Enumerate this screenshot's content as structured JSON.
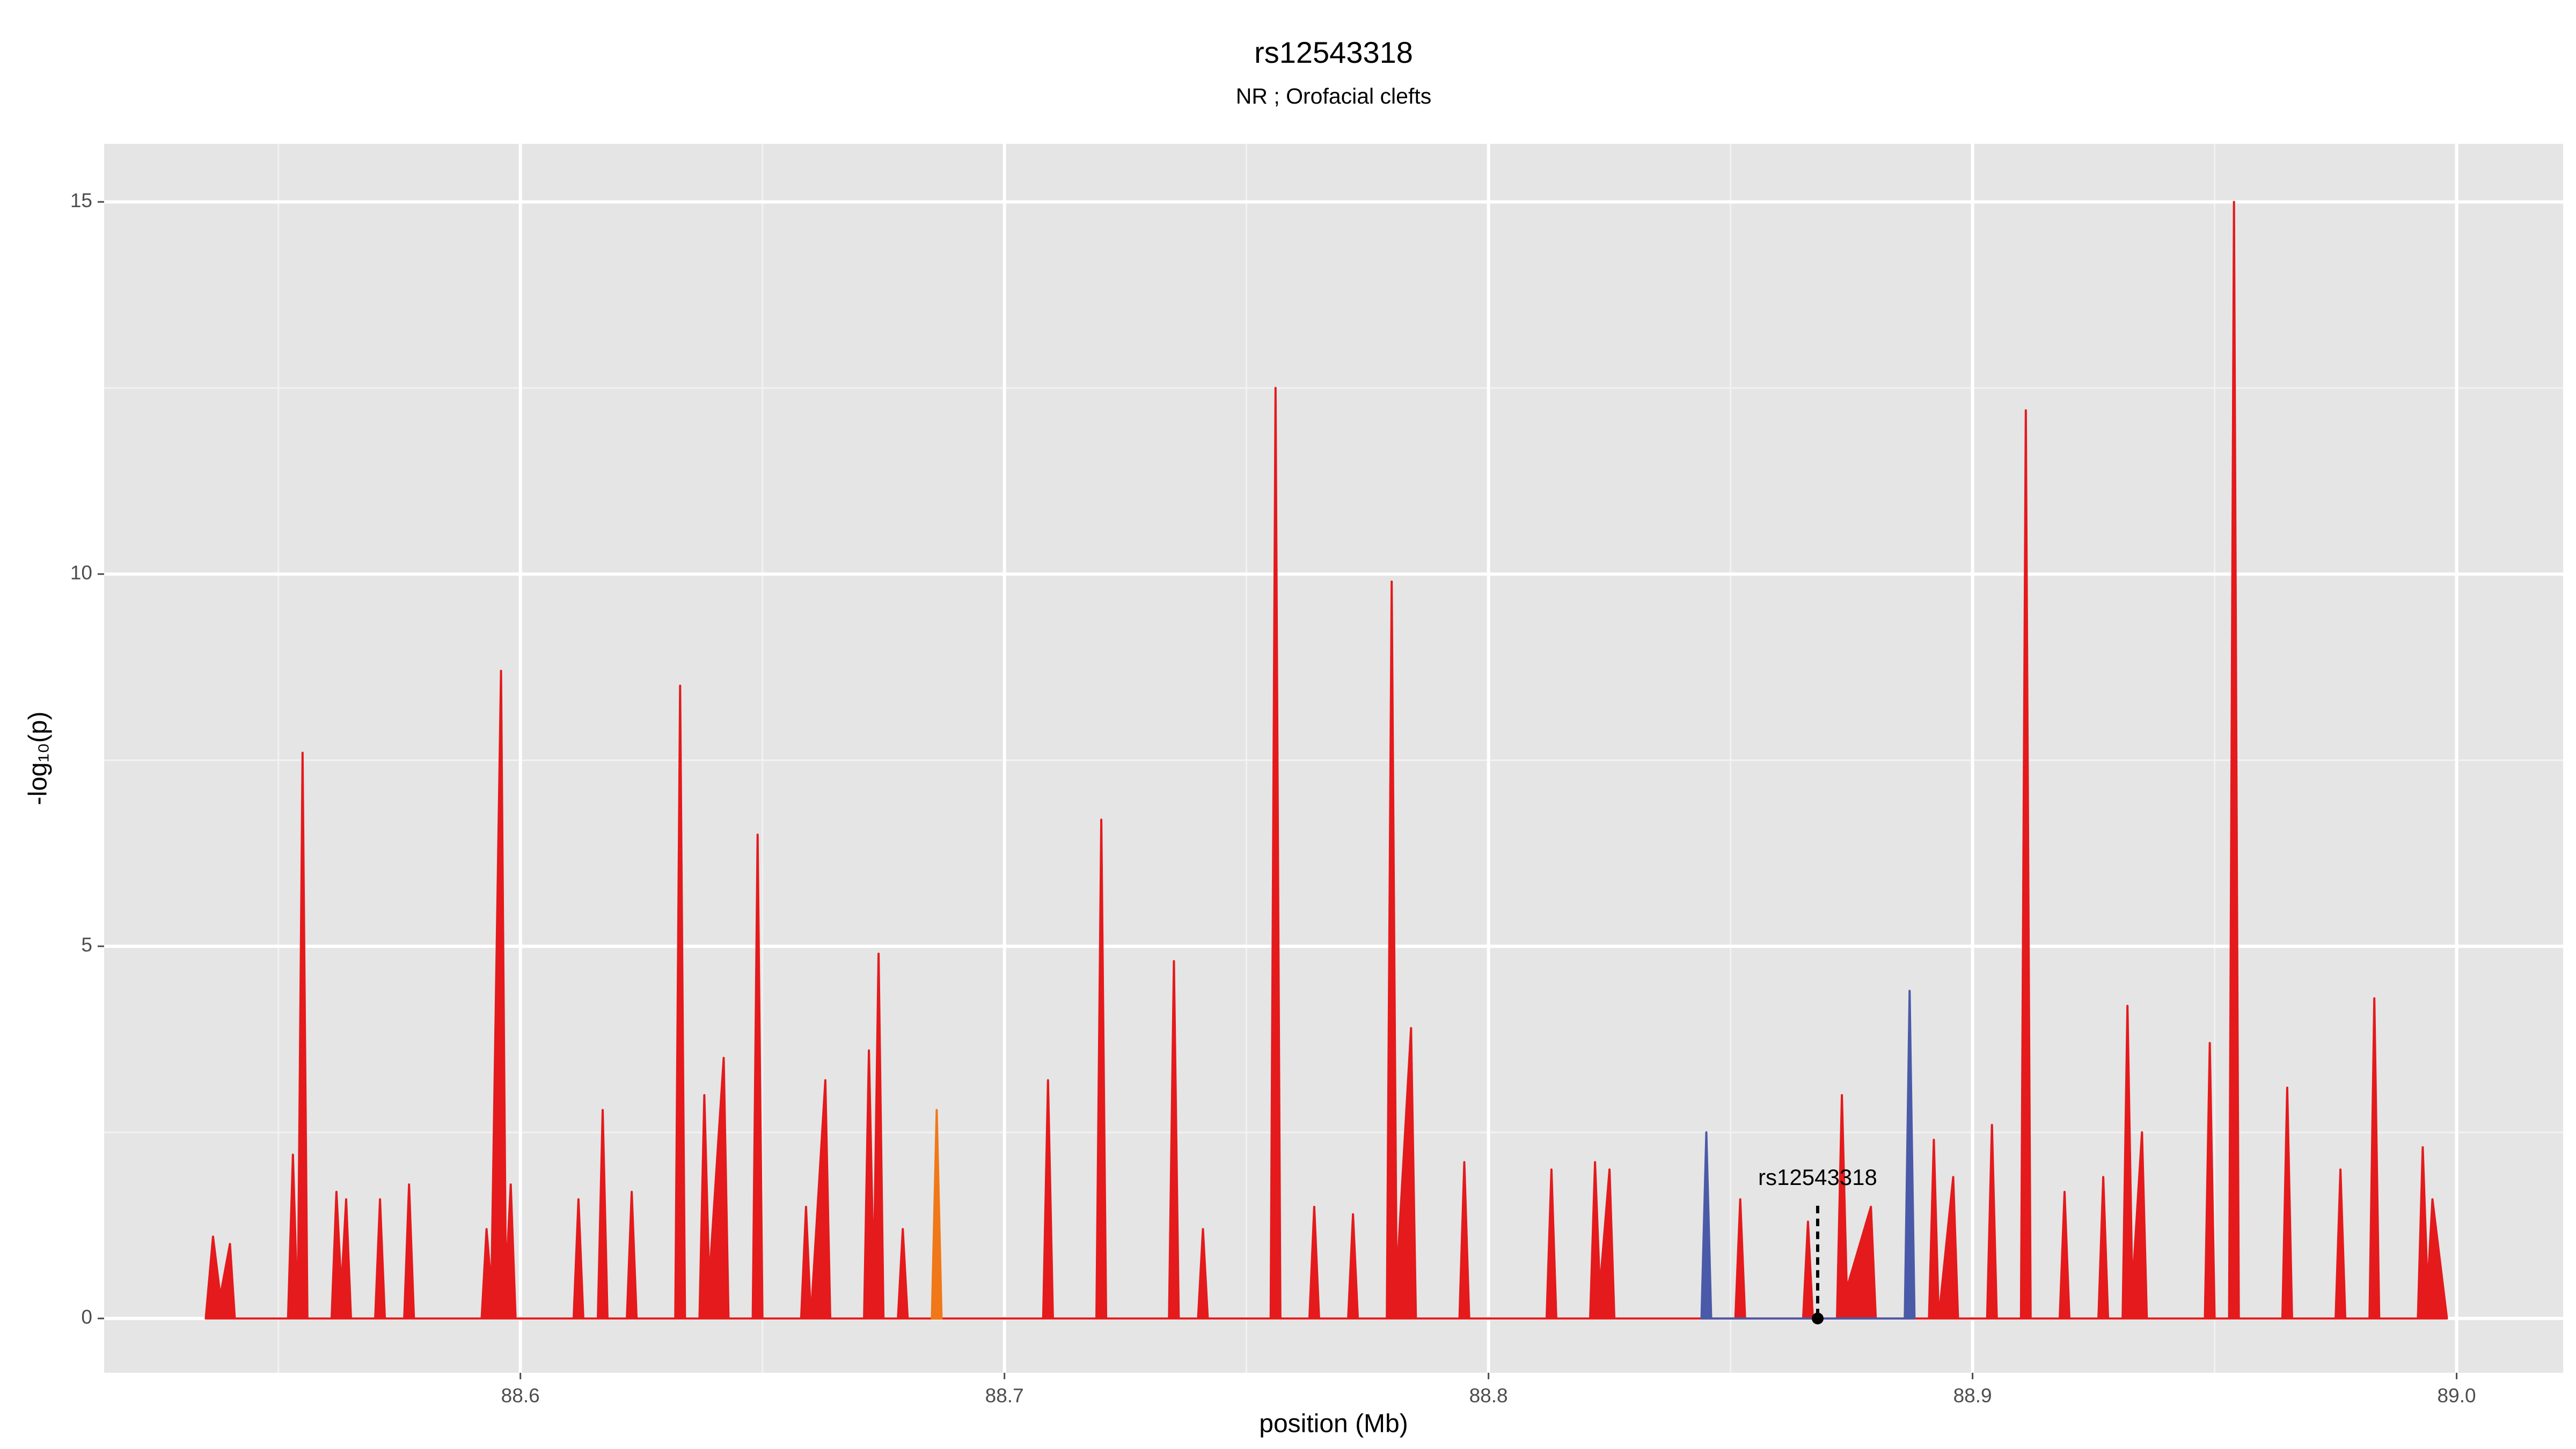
{
  "chart_data": {
    "type": "area",
    "title": "rs12543318",
    "subtitle": "NR ; Orofacial clefts",
    "xlabel": "position (Mb)",
    "ylabel": "-log₁₀(p)",
    "xlim": [
      88.514,
      89.022
    ],
    "ylim": [
      -0.73,
      15.78
    ],
    "xticks": [
      88.6,
      88.7,
      88.8,
      88.9,
      {
        "value": 89,
        "label": "89.0"
      }
    ],
    "yticks": [
      0,
      5,
      10,
      15
    ],
    "x_minor_ticks": [
      88.55,
      88.65,
      88.75,
      88.85,
      88.95
    ],
    "y_minor_ticks": [
      2.5,
      7.5,
      12.5
    ],
    "grid": true,
    "annotation": {
      "text": "rs12543318",
      "x": 88.868,
      "y": 0
    },
    "series": [
      {
        "color": "#e41a1c",
        "x": [
          88.535,
          88.5365,
          88.538,
          88.54,
          88.541,
          88.552,
          88.553,
          88.554,
          88.555,
          88.556,
          88.561,
          88.562,
          88.563,
          88.564,
          88.565,
          88.57,
          88.571,
          88.572,
          88.576,
          88.577,
          88.578,
          88.592,
          88.593,
          88.594,
          88.596,
          88.597,
          88.598,
          88.599,
          88.611,
          88.612,
          88.613,
          88.616,
          88.617,
          88.618,
          88.622,
          88.623,
          88.624,
          88.632,
          88.633,
          88.634,
          88.637,
          88.638,
          88.639,
          88.642,
          88.643,
          88.648,
          88.649,
          88.65,
          88.658,
          88.659,
          88.66,
          88.663,
          88.664,
          88.671,
          88.672,
          88.673,
          88.674,
          88.675,
          88.678,
          88.679,
          88.68,
          88.708,
          88.709,
          88.71,
          88.719,
          88.72,
          88.721,
          88.734,
          88.735,
          88.736,
          88.74,
          88.741,
          88.742,
          88.755,
          88.756,
          88.757,
          88.763,
          88.764,
          88.765,
          88.771,
          88.772,
          88.773,
          88.779,
          88.78,
          88.781,
          88.784,
          88.785,
          88.794,
          88.795,
          88.796,
          88.812,
          88.813,
          88.814,
          88.821,
          88.822,
          88.823,
          88.825,
          88.826,
          88.851,
          88.852,
          88.853,
          88.865,
          88.866,
          88.867,
          88.872,
          88.873,
          88.874,
          88.879,
          88.88,
          88.891,
          88.892,
          88.893,
          88.896,
          88.897,
          88.903,
          88.904,
          88.905,
          88.91,
          88.911,
          88.912,
          88.918,
          88.919,
          88.92,
          88.926,
          88.927,
          88.928,
          88.931,
          88.932,
          88.933,
          88.935,
          88.936,
          88.948,
          88.949,
          88.95,
          88.953,
          88.954,
          88.955,
          88.964,
          88.965,
          88.966,
          88.975,
          88.976,
          88.977,
          88.982,
          88.983,
          88.984,
          88.992,
          88.993,
          88.994,
          88.995,
          88.998
        ],
        "values": [
          0,
          1.1,
          0.3,
          1.0,
          0,
          0,
          2.2,
          0,
          7.6,
          0,
          0,
          1.7,
          0.4,
          1.6,
          0,
          0,
          1.6,
          0,
          0,
          1.8,
          0,
          0,
          1.2,
          0.4,
          8.7,
          0.5,
          1.8,
          0,
          0,
          1.6,
          0,
          0,
          2.8,
          0,
          0,
          1.7,
          0,
          0,
          8.5,
          0,
          0,
          3.0,
          0.5,
          3.5,
          0,
          0,
          6.5,
          0,
          0,
          1.5,
          0,
          3.2,
          0,
          0,
          3.6,
          0.5,
          4.9,
          0,
          0,
          1.2,
          0,
          0,
          3.2,
          0,
          0,
          6.7,
          0,
          0,
          4.8,
          0,
          0,
          1.2,
          0,
          0,
          12.5,
          0,
          0,
          1.5,
          0,
          0,
          1.4,
          0,
          0,
          9.9,
          0.5,
          3.9,
          0,
          0,
          2.1,
          0,
          0,
          2.0,
          0,
          0,
          2.1,
          0.4,
          2.0,
          0,
          0,
          1.6,
          0,
          0,
          1.3,
          0,
          0,
          3.0,
          0.4,
          1.5,
          0,
          0,
          2.4,
          0,
          1.9,
          0,
          0,
          2.6,
          0,
          0,
          12.2,
          0,
          0,
          1.7,
          0,
          0,
          1.9,
          0,
          0,
          4.2,
          0.4,
          2.5,
          0,
          0,
          3.7,
          0,
          0,
          15.0,
          0,
          0,
          3.1,
          0,
          0,
          2.0,
          0,
          0,
          4.3,
          0,
          0,
          2.3,
          0.4,
          1.6,
          0
        ]
      },
      {
        "color": "#4a5aa8",
        "x": [
          88.844,
          88.845,
          88.846,
          88.886,
          88.887,
          88.888
        ],
        "values": [
          0,
          2.5,
          0,
          0,
          4.4,
          0
        ]
      },
      {
        "color": "#f07818",
        "x": [
          88.685,
          88.686,
          88.687
        ],
        "values": [
          0,
          2.8,
          0
        ]
      }
    ]
  }
}
